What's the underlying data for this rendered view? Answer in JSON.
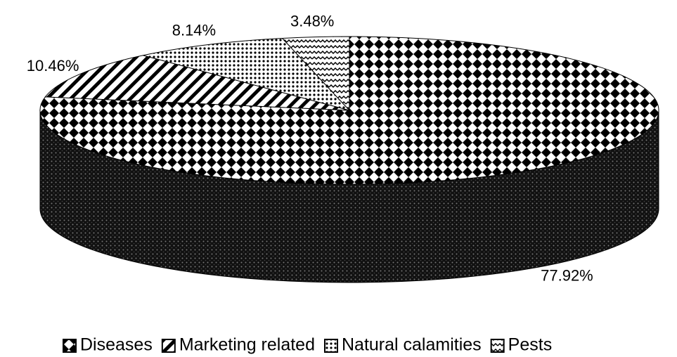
{
  "chart_data": {
    "type": "pie3d",
    "categories": [
      "Diseases",
      "Marketing related",
      "Natural calamities",
      "Pests"
    ],
    "values": [
      77.92,
      10.46,
      8.14,
      3.48
    ],
    "value_labels": [
      "77.92%",
      "10.46%",
      "8.14%",
      "3.48%"
    ],
    "legend": "bottom"
  }
}
